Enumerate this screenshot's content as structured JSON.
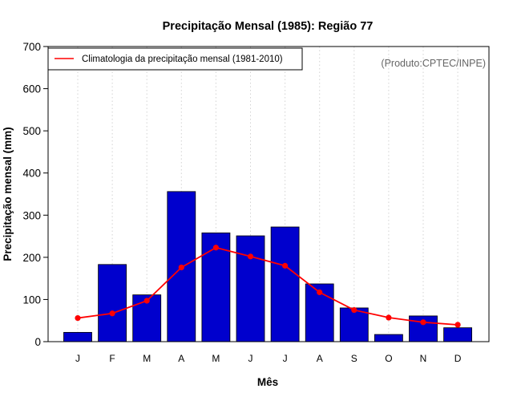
{
  "chart_data": {
    "type": "bar",
    "title": "Precipitação Mensal (1985): Região 77",
    "xlabel": "Mês",
    "ylabel": "Precipitação mensal (mm)",
    "ylim": [
      0,
      700
    ],
    "yticks": [
      0,
      100,
      200,
      300,
      400,
      500,
      600,
      700
    ],
    "categories": [
      "J",
      "F",
      "M",
      "A",
      "M",
      "J",
      "J",
      "A",
      "S",
      "O",
      "N",
      "D"
    ],
    "series": [
      {
        "name": "Precipitação mensal (1985)",
        "type": "bar",
        "color": "#0000CD",
        "values": [
          22,
          183,
          111,
          356,
          258,
          251,
          272,
          137,
          80,
          17,
          61,
          33
        ]
      },
      {
        "name": "Climatologia da precipitação mensal (1981-2010)",
        "type": "line",
        "color": "#FF0000",
        "values": [
          56,
          67,
          97,
          176,
          223,
          202,
          180,
          117,
          75,
          57,
          46,
          40
        ]
      }
    ],
    "legend": {
      "position": "top-left",
      "entries": [
        "Climatologia da precipitação mensal (1981-2010)"
      ]
    },
    "annotation": "(Produto:CPTEC/INPE)",
    "grid": "vertical-dotted"
  }
}
